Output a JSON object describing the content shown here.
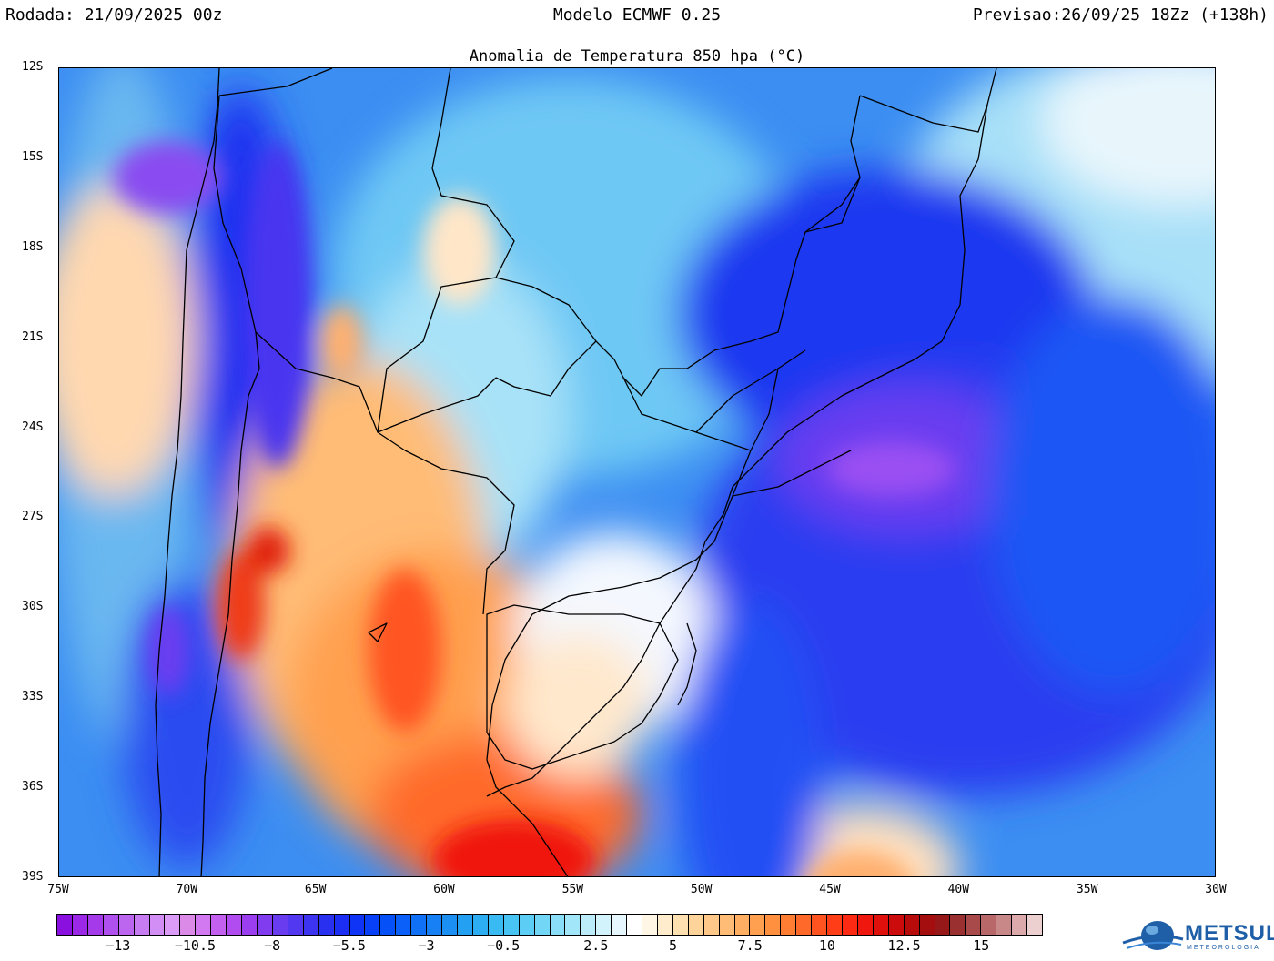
{
  "header": {
    "left": "Rodada: 21/09/2025 00z",
    "center": "Modelo ECMWF 0.25",
    "right": "Previsao:26/09/25 18Zz (+138h)"
  },
  "map": {
    "title": "Anomalia de Temperatura 850 hpa (°C)",
    "lat_labels": [
      "12S",
      "15S",
      "18S",
      "21S",
      "24S",
      "27S",
      "30S",
      "33S",
      "36S",
      "39S"
    ],
    "lon_labels": [
      "75W",
      "70W",
      "65W",
      "60W",
      "55W",
      "50W",
      "45W",
      "40W",
      "35W",
      "30W"
    ],
    "extent": {
      "lon_min": -75,
      "lon_max": -30,
      "lat_min": -39,
      "lat_max": -12
    }
  },
  "colorbar": {
    "labels": [
      "−13",
      "−10.5",
      "−8",
      "−5.5",
      "−3",
      "−0.5",
      "2.5",
      "5",
      "7.5",
      "10",
      "12.5",
      "15"
    ],
    "label_values": [
      -13,
      -10.5,
      -8,
      -5.5,
      -3,
      -0.5,
      2.5,
      5,
      7.5,
      10,
      12.5,
      15
    ],
    "min": -15,
    "max": 16,
    "step": 0.5,
    "colors": [
      "#8a10e0",
      "#9a28e6",
      "#a43aea",
      "#b050ee",
      "#bc66f0",
      "#c87cf2",
      "#d28ef4",
      "#da9cf6",
      "#dc8ae8",
      "#d278f0",
      "#c460f0",
      "#b04cf0",
      "#9a3ef0",
      "#823cf0",
      "#6a3cf0",
      "#5238f0",
      "#3c34f0",
      "#2a30f0",
      "#1c2ef4",
      "#1034f6",
      "#0840f8",
      "#0650f8",
      "#0a60f8",
      "#1070f6",
      "#1680f4",
      "#1c90f2",
      "#24a0f2",
      "#2eaef2",
      "#3abaf2",
      "#48c4f4",
      "#5ccef6",
      "#72d6f6",
      "#8adef8",
      "#a2e6fa",
      "#bcecfa",
      "#d2f2fc",
      "#e6f8fe",
      "#ffffff",
      "#fff6e6",
      "#ffeccc",
      "#ffe0b0",
      "#ffd49a",
      "#ffc888",
      "#ffbc76",
      "#ffae62",
      "#ffa050",
      "#ff9040",
      "#ff7e34",
      "#ff6a2a",
      "#ff5420",
      "#ff3e18",
      "#fc2a12",
      "#f0180e",
      "#e0100c",
      "#cc0c0c",
      "#b80c0c",
      "#a40e0e",
      "#961818",
      "#9a3030",
      "#a84a4a",
      "#b86868",
      "#c88888",
      "#dcaaaa",
      "#ecd0d0"
    ]
  },
  "logo": {
    "name": "METSUL",
    "subtitle": "METEOROLOGIA"
  }
}
